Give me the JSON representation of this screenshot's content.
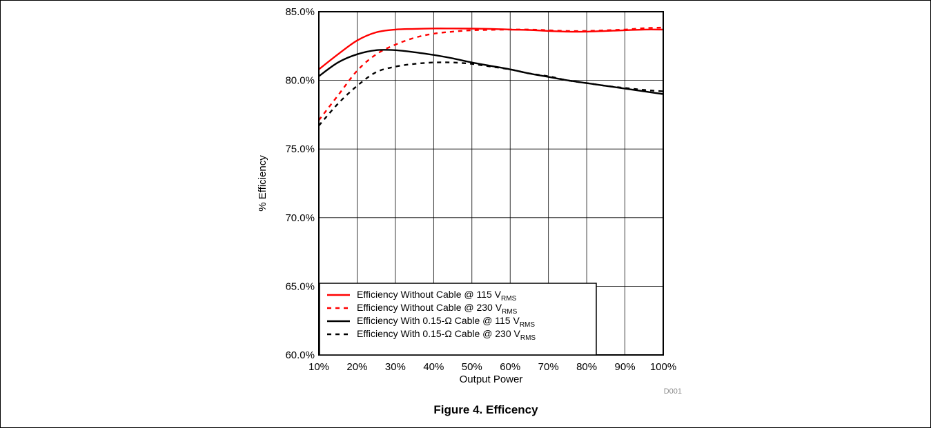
{
  "chart_data": {
    "type": "line",
    "title": "",
    "xlabel": "Output Power",
    "ylabel": "% Efficiency",
    "xlim": [
      10,
      100
    ],
    "ylim": [
      60,
      85
    ],
    "x_ticks": [
      "10%",
      "20%",
      "30%",
      "40%",
      "50%",
      "60%",
      "70%",
      "80%",
      "90%",
      "100%"
    ],
    "y_ticks": [
      "60.0%",
      "65.0%",
      "70.0%",
      "75.0%",
      "80.0%",
      "85.0%"
    ],
    "grid": true,
    "legend_position": "bottom-left",
    "series": [
      {
        "name": "Efficiency Without Cable @ 115 V",
        "name_sub": "RMS",
        "color": "#ff0000",
        "dash": "solid",
        "x": [
          10,
          15,
          20,
          25,
          30,
          35,
          40,
          45,
          50,
          55,
          60,
          65,
          70,
          75,
          80,
          85,
          90,
          95,
          100
        ],
        "y": [
          80.8,
          81.9,
          82.9,
          83.5,
          83.7,
          83.75,
          83.78,
          83.78,
          83.77,
          83.75,
          83.7,
          83.67,
          83.6,
          83.55,
          83.55,
          83.6,
          83.65,
          83.7,
          83.7
        ]
      },
      {
        "name": "Efficiency Without Cable @ 230 V",
        "name_sub": "RMS",
        "color": "#ff0000",
        "dash": "dashed",
        "x": [
          10,
          15,
          20,
          25,
          30,
          35,
          40,
          45,
          50,
          55,
          60,
          65,
          70,
          75,
          80,
          85,
          90,
          95,
          100
        ],
        "y": [
          77.1,
          78.9,
          80.7,
          81.9,
          82.6,
          83.1,
          83.4,
          83.55,
          83.65,
          83.68,
          83.7,
          83.7,
          83.65,
          83.6,
          83.6,
          83.65,
          83.7,
          83.8,
          83.85
        ]
      },
      {
        "name": "Efficiency With 0.15-Ω Cable @ 115 V",
        "name_sub": "RMS",
        "color": "#000000",
        "dash": "solid",
        "x": [
          10,
          15,
          20,
          25,
          30,
          35,
          40,
          45,
          50,
          55,
          60,
          65,
          70,
          75,
          80,
          85,
          90,
          95,
          100
        ],
        "y": [
          80.3,
          81.3,
          81.9,
          82.2,
          82.2,
          82.05,
          81.85,
          81.6,
          81.3,
          81.05,
          80.8,
          80.5,
          80.25,
          80.0,
          79.8,
          79.6,
          79.4,
          79.2,
          79.0
        ]
      },
      {
        "name": "Efficiency With 0.15-Ω Cable @ 230 V",
        "name_sub": "RMS",
        "color": "#000000",
        "dash": "dashed",
        "x": [
          10,
          15,
          20,
          25,
          30,
          35,
          40,
          45,
          50,
          55,
          60,
          65,
          70,
          75,
          80,
          85,
          90,
          95,
          100
        ],
        "y": [
          76.7,
          78.3,
          79.6,
          80.6,
          81.0,
          81.2,
          81.3,
          81.3,
          81.2,
          81.0,
          80.8,
          80.5,
          80.3,
          80.0,
          79.8,
          79.6,
          79.45,
          79.3,
          79.2
        ]
      }
    ]
  },
  "figure_code": "D001",
  "caption": "Figure 4. Efficency"
}
